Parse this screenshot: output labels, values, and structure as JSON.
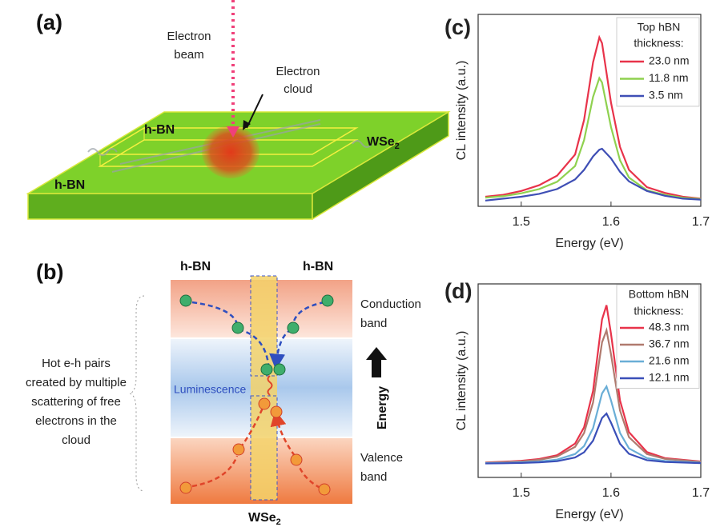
{
  "panel_a": {
    "label": "(a)",
    "beam": [
      "Electron",
      "beam"
    ],
    "cloud": [
      "Electron",
      "cloud"
    ],
    "hbn_top": "h-BN",
    "hbn_bottom": "h-BN",
    "wse2": {
      "main": "WSe",
      "sub": "2"
    }
  },
  "panel_b": {
    "label": "(b)",
    "hbn_left": "h-BN",
    "hbn_right": "h-BN",
    "conduction": [
      "Conduction",
      "band"
    ],
    "luminescence": "Luminescence",
    "energy": "Energy",
    "valence": [
      "Valence",
      "band"
    ],
    "wse2": {
      "main": "WSe",
      "sub": "2"
    },
    "note": [
      "Hot e-h pairs",
      "created by multiple",
      "scattering of free",
      "electrons in the",
      "cloud"
    ]
  },
  "chart_data": [
    {
      "type": "line",
      "panel_label": "(c)",
      "x_label": "Energy (eV)",
      "y_label": "CL intensity (a.u.)",
      "legend_title": [
        "Top hBN",
        "thickness:"
      ],
      "legend": "upper right",
      "x": [
        1.46,
        1.48,
        1.5,
        1.52,
        1.54,
        1.56,
        1.57,
        1.58,
        1.587,
        1.59,
        1.6,
        1.61,
        1.62,
        1.64,
        1.66,
        1.68,
        1.7
      ],
      "xlim": [
        1.452,
        1.7
      ],
      "xticks": [
        1.5,
        1.6,
        1.7
      ],
      "ylim": [
        0,
        1
      ],
      "series": [
        {
          "name": "23.0 nm",
          "color": "#e8334a",
          "values": [
            0.05,
            0.06,
            0.08,
            0.11,
            0.16,
            0.27,
            0.45,
            0.75,
            0.88,
            0.85,
            0.54,
            0.31,
            0.19,
            0.1,
            0.07,
            0.05,
            0.04
          ]
        },
        {
          "name": "11.8 nm",
          "color": "#8fd14f",
          "values": [
            0.045,
            0.053,
            0.068,
            0.09,
            0.128,
            0.21,
            0.345,
            0.57,
            0.668,
            0.645,
            0.413,
            0.24,
            0.15,
            0.083,
            0.06,
            0.045,
            0.038
          ]
        },
        {
          "name": "3.5 nm",
          "color": "#3f4fb5",
          "values": [
            0.03,
            0.04,
            0.05,
            0.065,
            0.09,
            0.14,
            0.19,
            0.26,
            0.295,
            0.3,
            0.25,
            0.18,
            0.13,
            0.08,
            0.055,
            0.04,
            0.035
          ]
        }
      ]
    },
    {
      "type": "line",
      "panel_label": "(d)",
      "x_label": "Energy (eV)",
      "y_label": "CL intensity (a.u.)",
      "legend_title": [
        "Bottom hBN",
        "thickness:"
      ],
      "legend": "upper right",
      "x": [
        1.46,
        1.48,
        1.5,
        1.52,
        1.54,
        1.56,
        1.57,
        1.58,
        1.59,
        1.595,
        1.6,
        1.61,
        1.62,
        1.64,
        1.66,
        1.7
      ],
      "xlim": [
        1.452,
        1.7
      ],
      "xticks": [
        1.5,
        1.6,
        1.7
      ],
      "ylim": [
        0,
        1
      ],
      "series": [
        {
          "name": "48.3 nm",
          "color": "#e8334a",
          "values": [
            0.077,
            0.081,
            0.086,
            0.095,
            0.115,
            0.175,
            0.259,
            0.447,
            0.816,
            0.89,
            0.742,
            0.398,
            0.234,
            0.131,
            0.1,
            0.082
          ]
        },
        {
          "name": "36.7 nm",
          "color": "#b07a6e",
          "values": [
            0.076,
            0.079,
            0.083,
            0.091,
            0.108,
            0.158,
            0.229,
            0.387,
            0.698,
            0.76,
            0.636,
            0.346,
            0.208,
            0.121,
            0.096,
            0.08
          ]
        },
        {
          "name": "21.6 nm",
          "color": "#6aaed6",
          "values": [
            0.074,
            0.075,
            0.078,
            0.082,
            0.092,
            0.121,
            0.162,
            0.254,
            0.434,
            0.47,
            0.398,
            0.23,
            0.15,
            0.1,
            0.085,
            0.076
          ]
        },
        {
          "name": "12.1 nm",
          "color": "#3a4fb8",
          "values": [
            0.072,
            0.073,
            0.075,
            0.078,
            0.084,
            0.103,
            0.13,
            0.19,
            0.307,
            0.33,
            0.283,
            0.174,
            0.122,
            0.089,
            0.08,
            0.074
          ]
        }
      ]
    }
  ]
}
